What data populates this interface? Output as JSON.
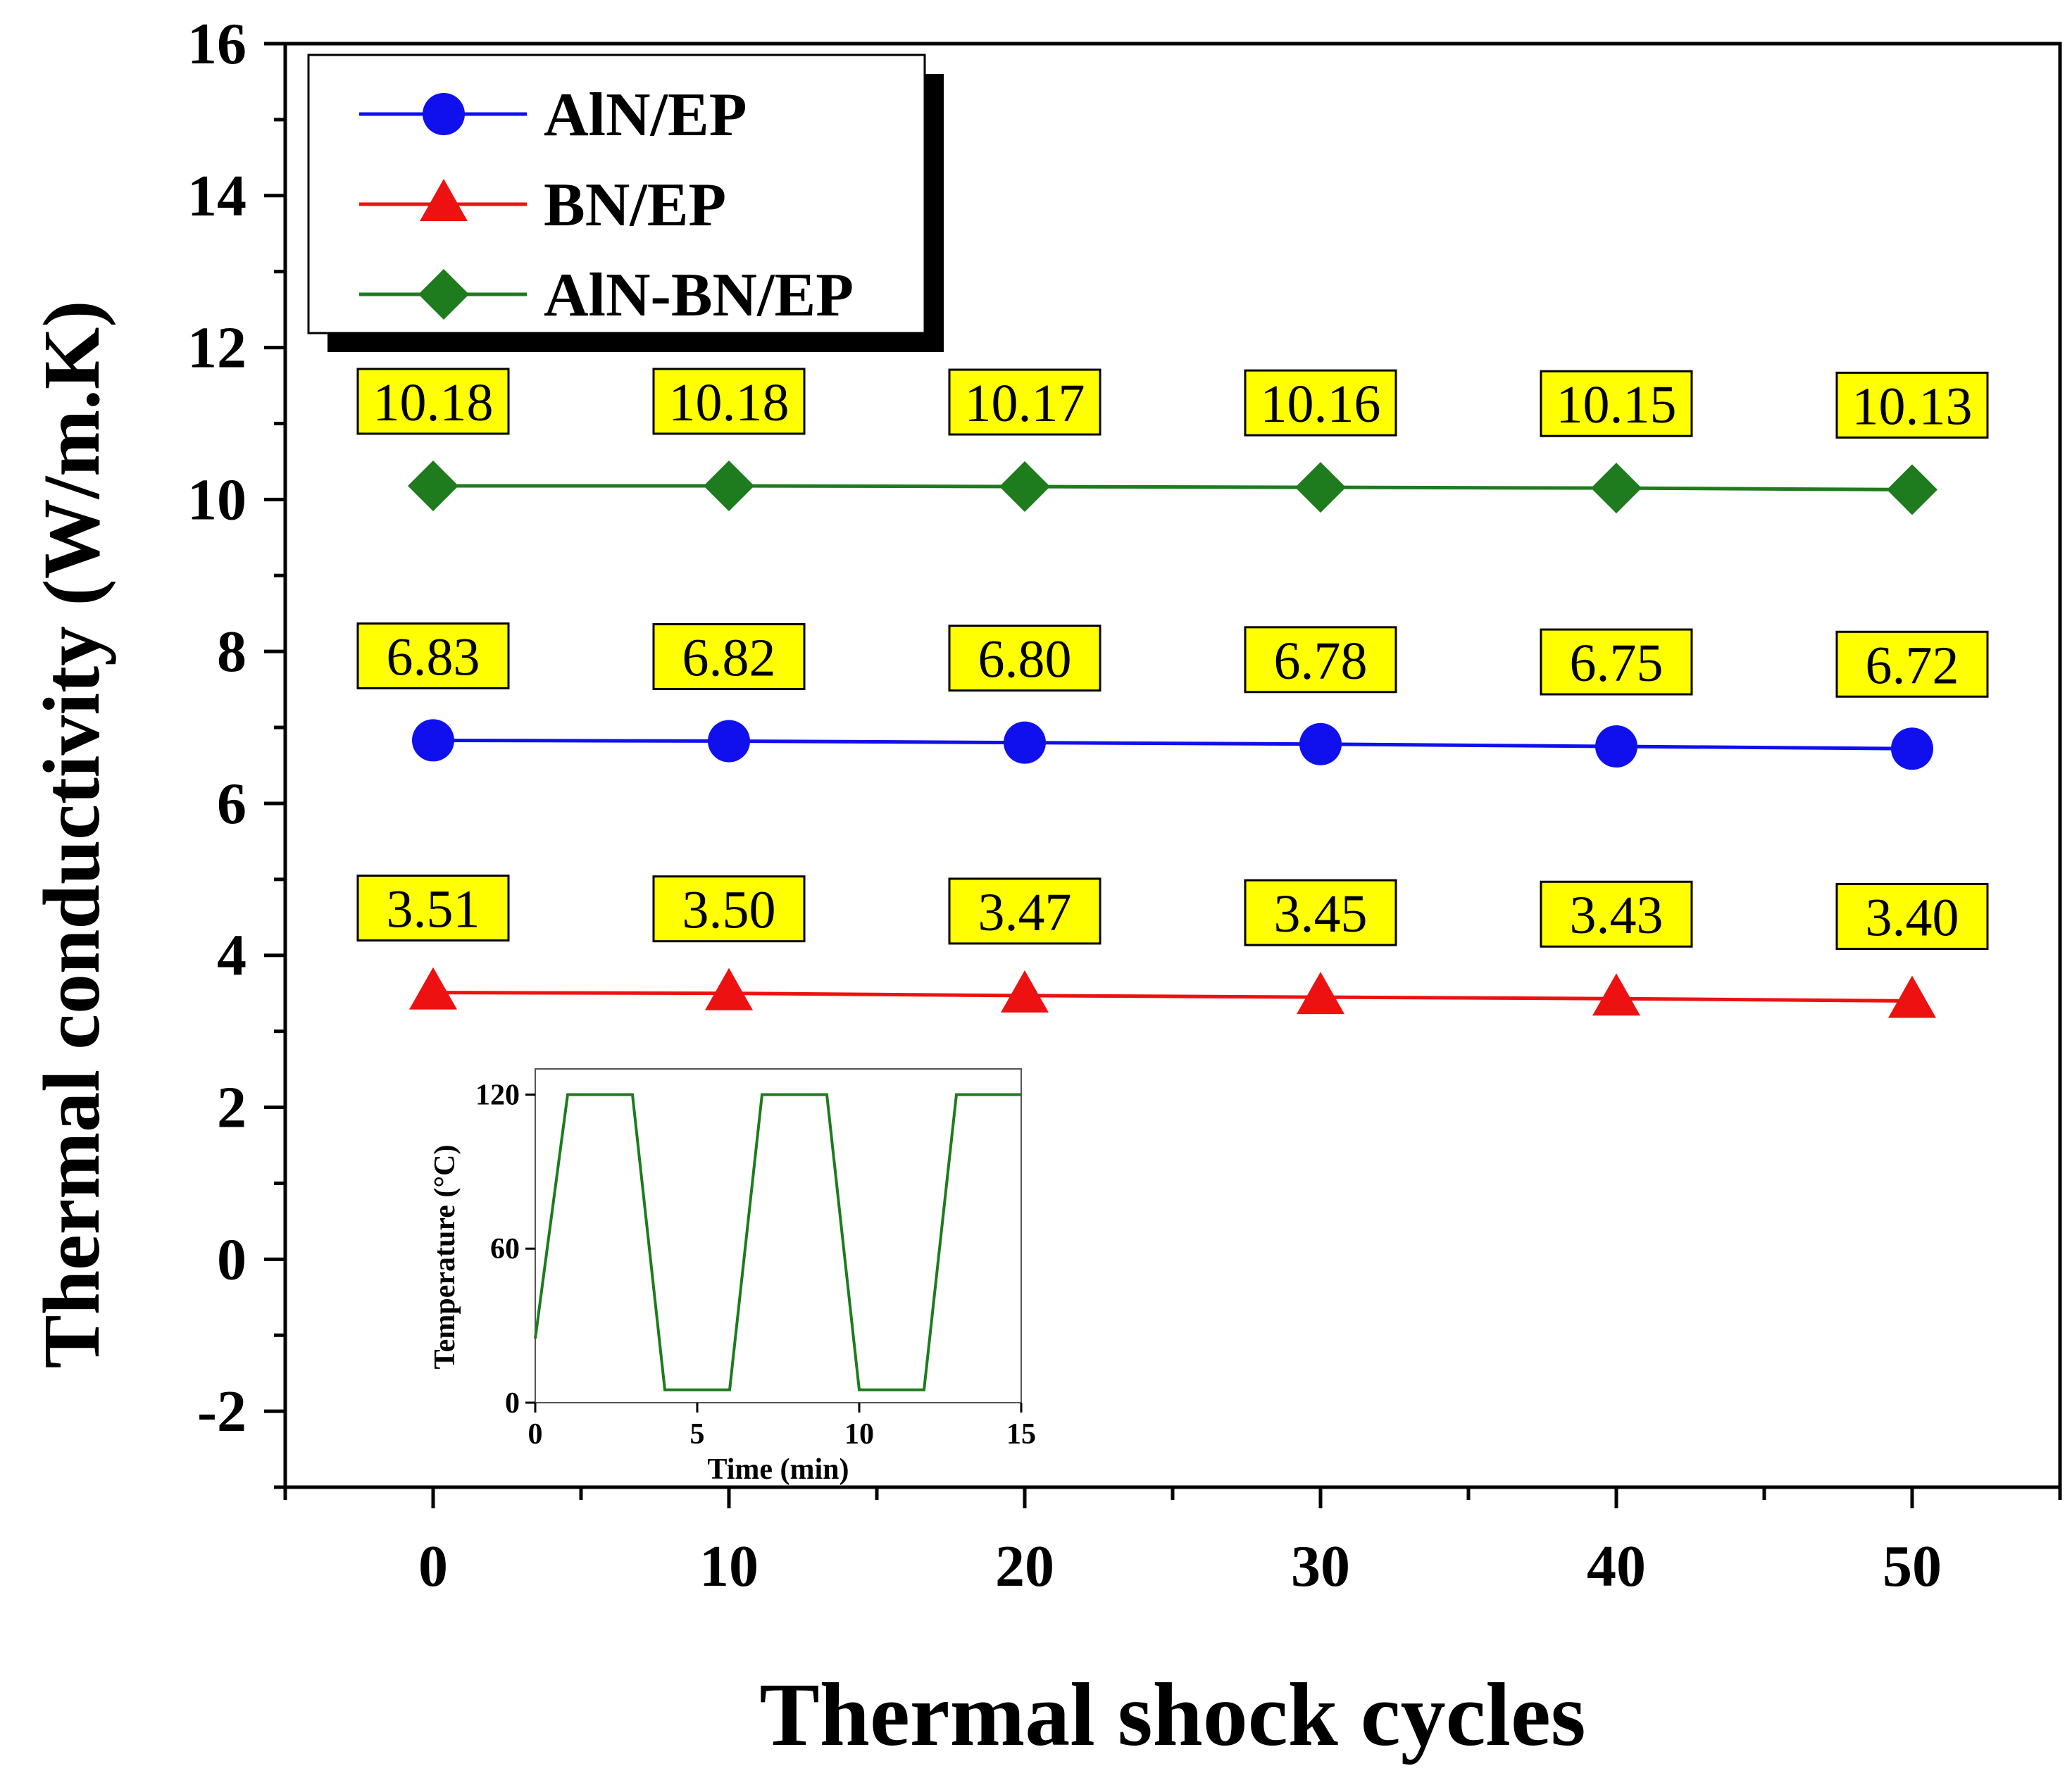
{
  "chart_data": {
    "type": "line",
    "title": "",
    "xlabel": "Thermal shock cycles",
    "ylabel": "Thermal conductivity (W/m.K)",
    "xlim": [
      -5,
      55
    ],
    "ylim": [
      -3,
      16
    ],
    "xticks": [
      0,
      10,
      20,
      30,
      40,
      50
    ],
    "yticks": [
      -2,
      0,
      2,
      4,
      6,
      8,
      10,
      12,
      14,
      16
    ],
    "x": [
      0,
      10,
      20,
      30,
      40,
      50
    ],
    "legend_position": "top-left",
    "series": [
      {
        "name": "AlN/EP",
        "color": "#1010ee",
        "marker": "circle",
        "values": [
          6.83,
          6.82,
          6.8,
          6.78,
          6.75,
          6.72
        ],
        "labels": [
          "6.83",
          "6.82",
          "6.80",
          "6.78",
          "6.75",
          "6.72"
        ]
      },
      {
        "name": "BN/EP",
        "color": "#ee1111",
        "marker": "triangle",
        "values": [
          3.51,
          3.5,
          3.47,
          3.45,
          3.43,
          3.4
        ],
        "labels": [
          "3.51",
          "3.50",
          "3.47",
          "3.45",
          "3.43",
          "3.40"
        ]
      },
      {
        "name": "AlN-BN/EP",
        "color": "#1e7b1e",
        "marker": "diamond",
        "values": [
          10.18,
          10.18,
          10.17,
          10.16,
          10.15,
          10.13
        ],
        "labels": [
          "10.18",
          "10.18",
          "10.17",
          "10.16",
          "10.15",
          "10.13"
        ]
      }
    ],
    "data_label_color": "#ffff00",
    "inset": {
      "type": "line",
      "xlabel": "Time (min)",
      "ylabel": "Temperature (°C)",
      "xlim": [
        0,
        15
      ],
      "ylim": [
        0,
        130
      ],
      "xticks": [
        0,
        5,
        10,
        15
      ],
      "yticks": [
        0,
        60,
        120
      ],
      "color": "#1e7b1e",
      "x": [
        0,
        1,
        3,
        4,
        6,
        7,
        9,
        10,
        12,
        13,
        15
      ],
      "y": [
        25,
        120,
        120,
        5,
        5,
        120,
        120,
        5,
        5,
        120,
        120
      ]
    }
  }
}
